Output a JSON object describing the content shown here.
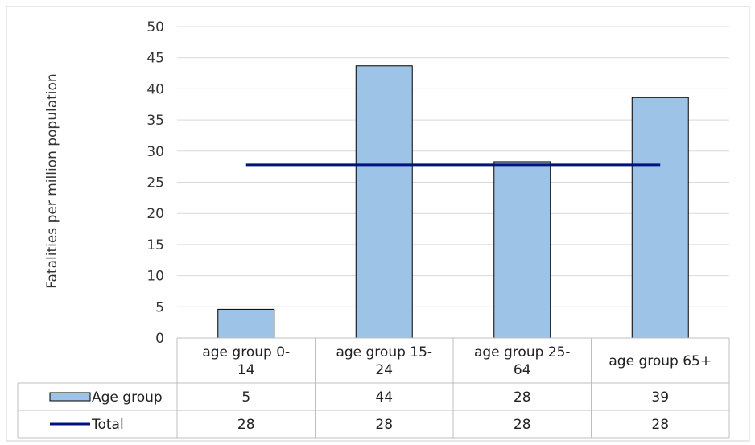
{
  "header": {
    "title": ""
  },
  "chart_data": {
    "type": "bar",
    "title": "",
    "xlabel": "",
    "ylabel": "Fatalities per million population",
    "ylim": [
      0,
      50
    ],
    "y_ticks": [
      0,
      5,
      10,
      15,
      20,
      25,
      30,
      35,
      40,
      45,
      50
    ],
    "grid": true,
    "legend_placement": "data-table",
    "categories": [
      [
        "age group 0-",
        "14"
      ],
      [
        "age group 15-",
        "24"
      ],
      [
        "age group 25-",
        "64"
      ],
      [
        "age group 65+"
      ]
    ],
    "series": [
      {
        "name": "Age group",
        "kind": "bar",
        "color": "#9dc3e6",
        "values": [
          4.6,
          43.7,
          28.3,
          38.6
        ],
        "labels": [
          "5",
          "44",
          "28",
          "39"
        ]
      },
      {
        "name": "Total",
        "kind": "line",
        "color": "#00137f",
        "values": [
          27.8,
          27.8,
          27.8,
          27.8
        ],
        "labels": [
          "28",
          "28",
          "28",
          "28"
        ]
      }
    ]
  }
}
